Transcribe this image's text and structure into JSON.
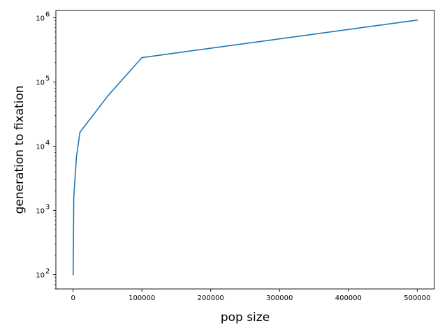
{
  "chart_data": {
    "type": "line",
    "title": "",
    "xlabel": "pop size",
    "ylabel": "generation to fixation",
    "xlim": [
      -25000,
      525000
    ],
    "ylim": [
      60,
      1300000
    ],
    "yscale": "log",
    "x_ticks": [
      0,
      100000,
      200000,
      300000,
      400000,
      500000
    ],
    "x_tick_labels": [
      "0",
      "100000",
      "200000",
      "300000",
      "400000",
      "500000"
    ],
    "y_ticks": [
      100,
      1000,
      10000,
      100000,
      1000000
    ],
    "y_tick_labels": [
      "10",
      "10",
      "10",
      "10",
      "10"
    ],
    "y_tick_exponents": [
      "2",
      "3",
      "4",
      "5",
      "6"
    ],
    "y_minor_ticks": true,
    "grid": false,
    "legend": "none",
    "series": [
      {
        "color": "#1f77b4",
        "x": [
          100,
          1000,
          5000,
          10000,
          50000,
          100000,
          500000
        ],
        "y": [
          100,
          1600,
          7000,
          16500,
          60000,
          240000,
          920000
        ]
      }
    ]
  }
}
